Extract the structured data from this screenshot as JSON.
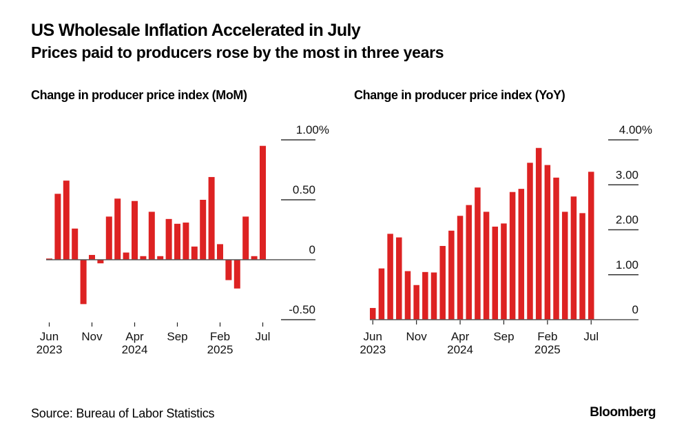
{
  "header": {
    "title": "US Wholesale Inflation Accelerated in July",
    "subtitle": "Prices paid to producers rose by the most in three years"
  },
  "footer": {
    "source": "Source: Bureau of Labor Statistics",
    "brand": "Bloomberg"
  },
  "colors": {
    "bar": "#dd2222",
    "axis": "#555555",
    "text": "#111111"
  },
  "chart_data": [
    {
      "type": "bar",
      "title": "Change in producer price index (MoM)",
      "xlabel": "",
      "ylabel": "",
      "unit": "%",
      "ylim": [
        -0.5,
        1.0
      ],
      "yticks": [
        {
          "value": 1.0,
          "label": "1.00%"
        },
        {
          "value": 0.5,
          "label": "0.50"
        },
        {
          "value": 0,
          "label": "0"
        },
        {
          "value": -0.5,
          "label": "-0.50"
        }
      ],
      "xticks": [
        {
          "index": 0,
          "label": "Jun",
          "sublabel": "2023"
        },
        {
          "index": 5,
          "label": "Nov",
          "sublabel": ""
        },
        {
          "index": 10,
          "label": "Apr",
          "sublabel": "2024"
        },
        {
          "index": 15,
          "label": "Sep",
          "sublabel": ""
        },
        {
          "index": 20,
          "label": "Feb",
          "sublabel": "2025"
        },
        {
          "index": 25,
          "label": "Jul",
          "sublabel": ""
        }
      ],
      "grid": true,
      "legend": "none",
      "categories": [
        "Jun 2023",
        "Jul 2023",
        "Aug 2023",
        "Sep 2023",
        "Oct 2023",
        "Nov 2023",
        "Dec 2023",
        "Jan 2024",
        "Feb 2024",
        "Mar 2024",
        "Apr 2024",
        "May 2024",
        "Jun 2024",
        "Jul 2024",
        "Aug 2024",
        "Sep 2024",
        "Oct 2024",
        "Nov 2024",
        "Dec 2024",
        "Jan 2025",
        "Feb 2025",
        "Mar 2025",
        "Apr 2025",
        "May 2025",
        "Jun 2025",
        "Jul 2025"
      ],
      "values": [
        0.01,
        0.55,
        0.66,
        0.26,
        -0.37,
        0.04,
        -0.03,
        0.36,
        0.51,
        0.06,
        0.49,
        0.03,
        0.4,
        0.03,
        0.34,
        0.3,
        0.31,
        0.11,
        0.5,
        0.69,
        0.13,
        -0.17,
        -0.24,
        0.36,
        0.03,
        0.95
      ]
    },
    {
      "type": "bar",
      "title": "Change in producer price index (YoY)",
      "xlabel": "",
      "ylabel": "",
      "unit": "%",
      "ylim": [
        0,
        4.0
      ],
      "yticks": [
        {
          "value": 4.0,
          "label": "4.00%"
        },
        {
          "value": 3.0,
          "label": "3.00"
        },
        {
          "value": 2.0,
          "label": "2.00"
        },
        {
          "value": 1.0,
          "label": "1.00"
        },
        {
          "value": 0,
          "label": "0"
        }
      ],
      "xticks": [
        {
          "index": 0,
          "label": "Jun",
          "sublabel": "2023"
        },
        {
          "index": 5,
          "label": "Nov",
          "sublabel": ""
        },
        {
          "index": 10,
          "label": "Apr",
          "sublabel": "2024"
        },
        {
          "index": 15,
          "label": "Sep",
          "sublabel": ""
        },
        {
          "index": 20,
          "label": "Feb",
          "sublabel": "2025"
        },
        {
          "index": 25,
          "label": "Jul",
          "sublabel": ""
        }
      ],
      "grid": true,
      "legend": "none",
      "categories": [
        "Jun 2023",
        "Jul 2023",
        "Aug 2023",
        "Sep 2023",
        "Oct 2023",
        "Nov 2023",
        "Dec 2023",
        "Jan 2024",
        "Feb 2024",
        "Mar 2024",
        "Apr 2024",
        "May 2024",
        "Jun 2024",
        "Jul 2024",
        "Aug 2024",
        "Sep 2024",
        "Oct 2024",
        "Nov 2024",
        "Dec 2024",
        "Jan 2025",
        "Feb 2025",
        "Mar 2025",
        "Apr 2025",
        "May 2025",
        "Jun 2025",
        "Jul 2025"
      ],
      "values": [
        0.26,
        1.14,
        1.91,
        1.83,
        1.08,
        0.77,
        1.06,
        1.05,
        1.64,
        1.98,
        2.31,
        2.55,
        2.94,
        2.4,
        2.07,
        2.14,
        2.84,
        2.91,
        3.49,
        3.82,
        3.44,
        3.16,
        2.4,
        2.74,
        2.37,
        3.29
      ]
    }
  ]
}
